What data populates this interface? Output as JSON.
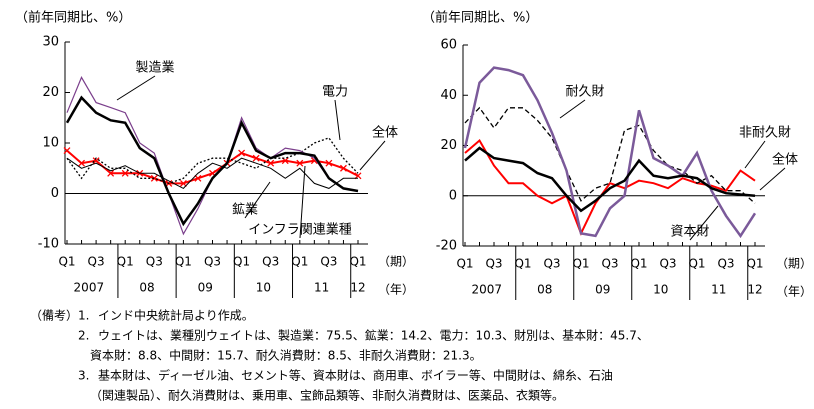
{
  "chart_data": [
    {
      "type": "line",
      "y_label": "（前年同期比、%）",
      "categories": [
        "Q1",
        null,
        "Q3",
        null,
        "Q1",
        null,
        "Q3",
        null,
        "Q1",
        null,
        "Q3",
        null,
        "Q1",
        null,
        "Q3",
        null,
        "Q1",
        null,
        "Q3",
        null,
        "Q1"
      ],
      "x_unit": "（期）",
      "years": [
        "2007",
        "08",
        "09",
        "10",
        "11",
        "12"
      ],
      "year_unit": "（年）",
      "ylim": [
        -10,
        30
      ],
      "yticks": [
        -10,
        0,
        10,
        20,
        30
      ],
      "series": [
        {
          "name": "全体",
          "color": "#000000",
          "line_style": "solid",
          "linewidth": 2.5,
          "values": [
            14,
            19,
            16,
            14.5,
            14,
            9,
            7,
            0,
            -6,
            -2,
            3,
            6,
            14,
            8.5,
            7,
            8,
            8,
            7.5,
            3,
            1,
            0.5
          ]
        },
        {
          "name": "製造業",
          "color": "#7b3f8c",
          "line_style": "solid",
          "linewidth": 1.2,
          "values": [
            16,
            23,
            18,
            17,
            16,
            10,
            8,
            0,
            -8,
            -3,
            3,
            6,
            15,
            9,
            7,
            9,
            8.5,
            7,
            3,
            1,
            0.5
          ]
        },
        {
          "name": "鉱業",
          "color": "#000000",
          "line_style": "solid",
          "linewidth": 1,
          "values": [
            7,
            5,
            6,
            4.5,
            5.5,
            4,
            4,
            2.5,
            1,
            4,
            6,
            5,
            7,
            6,
            5,
            3,
            5,
            2,
            1,
            3,
            3
          ]
        },
        {
          "name": "電力",
          "color": "#000000",
          "line_style": "dotted",
          "linewidth": 1.3,
          "values": [
            7,
            3,
            7,
            5,
            5,
            3,
            3,
            2,
            3,
            6,
            7,
            7,
            6,
            5,
            7,
            7,
            8,
            10,
            11,
            7,
            4
          ]
        },
        {
          "name": "インフラ関連業種",
          "color": "#ff0000",
          "line_style": "solid",
          "linewidth": 2,
          "marker": "x",
          "values": [
            8.5,
            6,
            6.5,
            4,
            4,
            4,
            3,
            2,
            2,
            3,
            4,
            6,
            8,
            7,
            6,
            6.5,
            6,
            6.5,
            6,
            5,
            3.5
          ]
        }
      ]
    },
    {
      "type": "line",
      "y_label": "（前年同期比、%）",
      "categories": [
        "Q1",
        null,
        "Q3",
        null,
        "Q1",
        null,
        "Q3",
        null,
        "Q1",
        null,
        "Q3",
        null,
        "Q1",
        null,
        "Q3",
        null,
        "Q1",
        null,
        "Q3",
        null,
        "Q1"
      ],
      "x_unit": "（期）",
      "years": [
        "2007",
        "08",
        "09",
        "10",
        "11",
        "12"
      ],
      "year_unit": "（年）",
      "ylim": [
        -20,
        60
      ],
      "yticks": [
        -20,
        0,
        20,
        40,
        60
      ],
      "series": [
        {
          "name": "全体",
          "color": "#000000",
          "line_style": "solid",
          "linewidth": 2.5,
          "values": [
            14,
            19,
            15,
            14,
            13,
            9,
            7,
            0,
            -6,
            -2,
            3,
            6,
            14,
            8,
            7,
            8,
            7,
            3,
            1,
            0.5,
            0
          ]
        },
        {
          "name": "資本財",
          "color": "#7b5a9a",
          "line_style": "solid",
          "linewidth": 2.5,
          "values": [
            19,
            45,
            51,
            50,
            48,
            38,
            25,
            10,
            -15,
            -16,
            -5,
            0,
            34,
            15,
            12,
            8,
            17,
            2,
            -8,
            -16,
            -7
          ]
        },
        {
          "name": "耐久財",
          "color": "#000000",
          "line_style": "dashed",
          "linewidth": 1.3,
          "values": [
            29,
            35,
            27,
            35,
            35,
            30,
            23,
            10,
            -2,
            3,
            5,
            26,
            28,
            18,
            12,
            10,
            5,
            8,
            2,
            2,
            -3
          ]
        },
        {
          "name": "非耐久財",
          "color": "#ff0000",
          "line_style": "solid",
          "linewidth": 2,
          "values": [
            17,
            22,
            12,
            5,
            5,
            0,
            -3,
            0,
            -15,
            -3,
            5,
            3,
            6,
            5,
            3,
            7,
            5,
            4,
            2,
            10,
            6
          ]
        }
      ]
    }
  ],
  "notes": {
    "label": "（備考）",
    "items": [
      {
        "number": "1.",
        "lines": [
          "インド中央統計局より作成。"
        ]
      },
      {
        "number": "2.",
        "lines": [
          "ウェイトは、業種別ウェイトは、製造業：75.5、鉱業：14.2、電力：10.3、財別は、基本財：45.7、",
          "資本財：8.8、中間財：15.7、耐久消費財：8.5、非耐久消費財：21.3。"
        ]
      },
      {
        "number": "3.",
        "lines": [
          "基本財は、ディーゼル油、セメント等、資本財は、商用車、ボイラー等、中間財は、綿糸、石油",
          "（関連製品）、耐久消費財は、乗用車、宝飾品類等、非耐久消費財は、医薬品、衣類等。"
        ]
      }
    ]
  }
}
